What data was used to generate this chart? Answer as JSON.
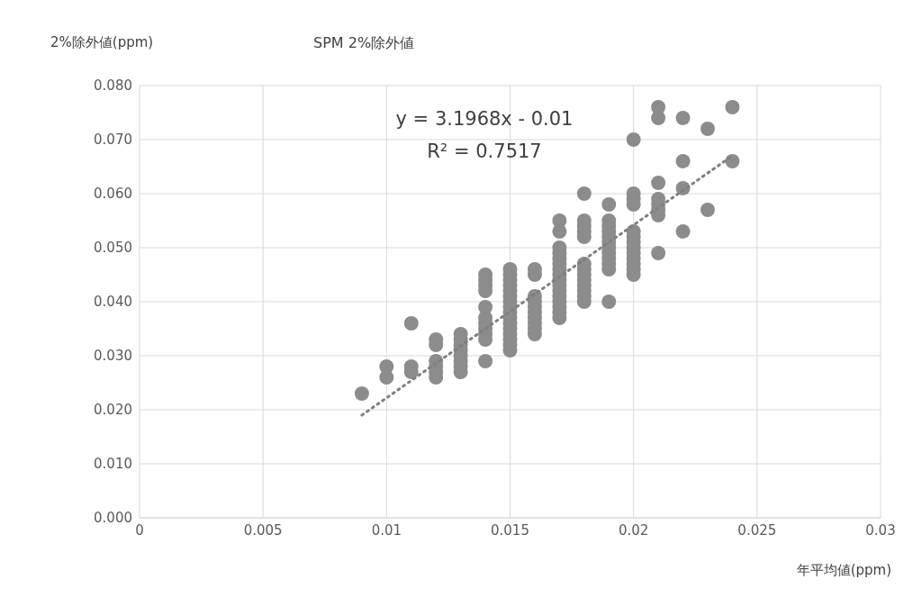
{
  "chart_data": {
    "type": "scatter",
    "title": "SPM 2%除外値",
    "xlabel": "年平均値(ppm)",
    "ylabel": "2%除外値(ppm)",
    "annotations": [
      "y = 3.1968x - 0.01",
      "R² = 0.7517"
    ],
    "xlim": [
      0,
      0.03
    ],
    "xticks": [
      0,
      0.005,
      0.01,
      0.015,
      0.02,
      0.025,
      0.03
    ],
    "ylim": [
      0,
      0.08
    ],
    "yticks": [
      {
        "value": 0,
        "label": "0.000"
      },
      {
        "value": 0.01,
        "label": "0.010"
      },
      {
        "value": 0.02,
        "label": "0.020"
      },
      {
        "value": 0.03,
        "label": "0.030"
      },
      {
        "value": 0.04,
        "label": "0.040"
      },
      {
        "value": 0.05,
        "label": "0.050"
      },
      {
        "value": 0.06,
        "label": "0.060"
      },
      {
        "value": 0.07,
        "label": "0.070"
      },
      {
        "value": 0.08,
        "label": "0.080"
      }
    ],
    "grid": true,
    "legend": false,
    "marker": "circle",
    "series": [
      {
        "color": "#8c8c8c",
        "x": [
          0.009,
          0.01,
          0.01,
          0.011,
          0.011,
          0.011,
          0.012,
          0.012,
          0.012,
          0.012,
          0.012,
          0.012,
          0.013,
          0.013,
          0.013,
          0.013,
          0.013,
          0.013,
          0.013,
          0.013,
          0.014,
          0.014,
          0.014,
          0.014,
          0.014,
          0.014,
          0.014,
          0.014,
          0.014,
          0.014,
          0.014,
          0.015,
          0.015,
          0.015,
          0.015,
          0.015,
          0.015,
          0.015,
          0.015,
          0.015,
          0.015,
          0.015,
          0.015,
          0.015,
          0.015,
          0.015,
          0.015,
          0.016,
          0.016,
          0.016,
          0.016,
          0.016,
          0.016,
          0.016,
          0.016,
          0.016,
          0.016,
          0.017,
          0.017,
          0.017,
          0.017,
          0.017,
          0.017,
          0.017,
          0.017,
          0.017,
          0.017,
          0.017,
          0.017,
          0.017,
          0.017,
          0.017,
          0.017,
          0.018,
          0.018,
          0.018,
          0.018,
          0.018,
          0.018,
          0.018,
          0.018,
          0.018,
          0.018,
          0.018,
          0.018,
          0.018,
          0.019,
          0.019,
          0.019,
          0.019,
          0.019,
          0.019,
          0.019,
          0.019,
          0.019,
          0.019,
          0.019,
          0.019,
          0.02,
          0.02,
          0.02,
          0.02,
          0.02,
          0.02,
          0.02,
          0.02,
          0.02,
          0.02,
          0.02,
          0.02,
          0.02,
          0.021,
          0.021,
          0.021,
          0.021,
          0.021,
          0.021,
          0.021,
          0.021,
          0.022,
          0.022,
          0.022,
          0.022,
          0.023,
          0.023,
          0.024,
          0.024
        ],
        "values": [
          0.023,
          0.026,
          0.028,
          0.027,
          0.028,
          0.036,
          0.026,
          0.027,
          0.028,
          0.029,
          0.032,
          0.033,
          0.027,
          0.028,
          0.029,
          0.03,
          0.031,
          0.032,
          0.033,
          0.034,
          0.029,
          0.033,
          0.034,
          0.035,
          0.036,
          0.037,
          0.039,
          0.042,
          0.043,
          0.044,
          0.045,
          0.031,
          0.032,
          0.033,
          0.034,
          0.035,
          0.036,
          0.037,
          0.038,
          0.039,
          0.04,
          0.041,
          0.042,
          0.043,
          0.044,
          0.045,
          0.046,
          0.034,
          0.035,
          0.036,
          0.037,
          0.038,
          0.039,
          0.04,
          0.041,
          0.045,
          0.046,
          0.037,
          0.038,
          0.039,
          0.04,
          0.041,
          0.042,
          0.043,
          0.044,
          0.045,
          0.046,
          0.047,
          0.048,
          0.049,
          0.05,
          0.053,
          0.055,
          0.04,
          0.041,
          0.042,
          0.043,
          0.044,
          0.045,
          0.046,
          0.047,
          0.052,
          0.053,
          0.054,
          0.055,
          0.06,
          0.04,
          0.046,
          0.047,
          0.048,
          0.049,
          0.05,
          0.051,
          0.052,
          0.053,
          0.054,
          0.055,
          0.058,
          0.045,
          0.046,
          0.047,
          0.048,
          0.049,
          0.05,
          0.051,
          0.052,
          0.053,
          0.058,
          0.059,
          0.06,
          0.07,
          0.049,
          0.056,
          0.057,
          0.058,
          0.059,
          0.062,
          0.074,
          0.076,
          0.053,
          0.061,
          0.066,
          0.074,
          0.057,
          0.072,
          0.066,
          0.076
        ]
      },
      {
        "type": "line",
        "color": "#7f7f7f",
        "line_style": "dotted",
        "marker": "none",
        "x": [
          0.009,
          0.024
        ],
        "values": [
          0.019,
          0.067
        ]
      }
    ]
  }
}
